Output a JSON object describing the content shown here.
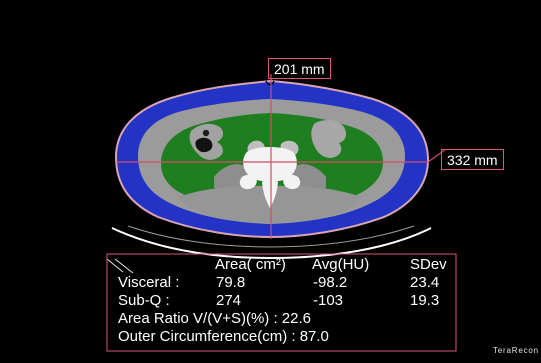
{
  "image": {
    "measurements": {
      "ap_length": "201 mm",
      "lateral_width": "332 mm"
    },
    "stats_table": {
      "headers": [
        "Area( cm²)",
        "Avg(HU)",
        "SDev"
      ],
      "rows": [
        {
          "label": "Visceral :",
          "values": [
            "79.8",
            "-98.2",
            "23.4"
          ]
        },
        {
          "label": "Sub-Q :",
          "values": [
            "274",
            "-103",
            "19.3"
          ]
        }
      ],
      "area_ratio": "Area Ratio V/(V+S)(%) : 22.6",
      "outer_circumference": "Outer Circumference(cm) : 87.0"
    },
    "colors": {
      "subcutaneous_fat": "#2233c6",
      "visceral_fat": "#1f7e1f",
      "tissue": "#9a9a9a",
      "bone": "#f3f3f3",
      "measurement_line": "#d64b6a",
      "outline": "#d9a4b4"
    },
    "brand": "TeraRecon"
  }
}
